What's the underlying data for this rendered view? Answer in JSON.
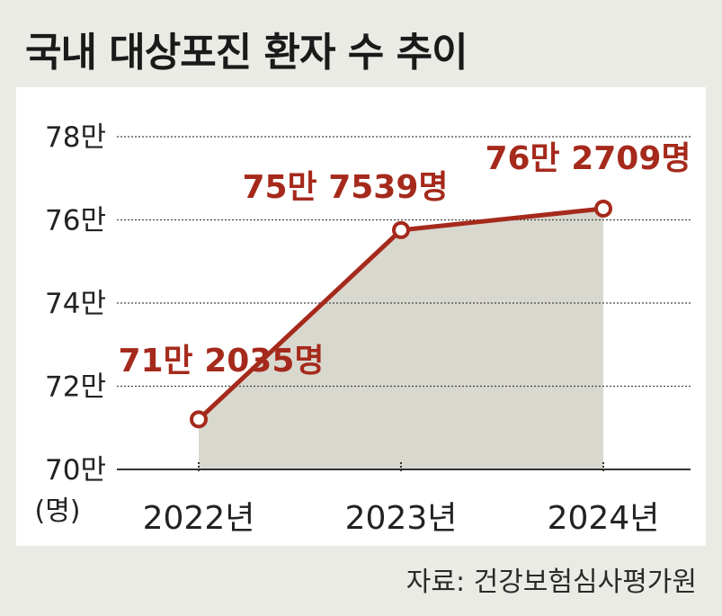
{
  "title": "국내 대상포진 환자 수 추이",
  "source": "자료: 건강보험심사평가원",
  "colors": {
    "line": "#a52a1c",
    "area": "#d9d8cf",
    "label": "#a52a1c",
    "grid": "#444444"
  },
  "chart_data": {
    "type": "line",
    "categories": [
      "2022년",
      "2023년",
      "2024년"
    ],
    "values": [
      712035,
      757539,
      762709
    ],
    "data_labels": [
      "71만 2035명",
      "75만 7539명",
      "76만 2709명"
    ],
    "ylim": [
      700000,
      780000
    ],
    "yticks": [
      700000,
      720000,
      740000,
      760000,
      780000
    ],
    "ytick_labels": [
      "70만",
      "72만",
      "74만",
      "76만",
      "78만"
    ],
    "yunit": "(명)",
    "grid": true
  }
}
